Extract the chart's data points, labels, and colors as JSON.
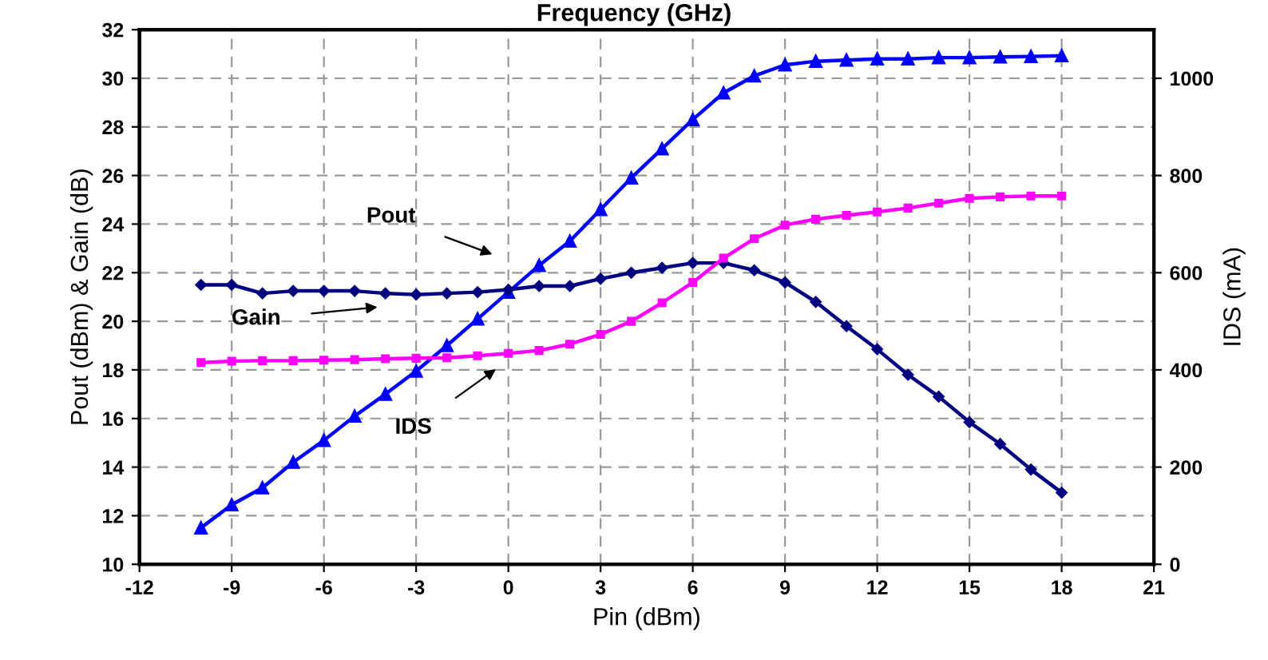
{
  "chart_data": {
    "type": "line",
    "title": "Frequency (GHz)",
    "xlabel": "Pin (dBm)",
    "ylabel": "Pout (dBm) & Gain (dB)",
    "y2label": "IDS (mA)",
    "x": [
      -10,
      -9,
      -8,
      -7,
      -6,
      -5,
      -4,
      -3,
      -2,
      -1,
      0,
      1,
      2,
      3,
      4,
      5,
      6,
      7,
      8,
      9,
      10,
      11,
      12,
      13,
      14,
      15,
      16,
      17,
      18
    ],
    "series": [
      {
        "color": "#0000ff",
        "marker": "triangle",
        "values": [
          11.5,
          12.45,
          13.15,
          14.2,
          15.1,
          16.1,
          17.0,
          17.95,
          19.0,
          20.1,
          21.2,
          22.3,
          23.3,
          24.6,
          25.9,
          27.1,
          28.3,
          29.4,
          30.1,
          30.55,
          30.7,
          30.75,
          30.8,
          30.8,
          30.85,
          30.85,
          30.88,
          30.9,
          30.93
        ]
      },
      {
        "color": "#000080",
        "marker": "diamond",
        "values": [
          21.5,
          21.5,
          21.15,
          21.25,
          21.25,
          21.25,
          21.15,
          21.1,
          21.15,
          21.2,
          21.3,
          21.45,
          21.45,
          21.75,
          22.0,
          22.2,
          22.4,
          22.4,
          22.1,
          21.6,
          20.8,
          19.8,
          18.85,
          17.8,
          16.9,
          15.85,
          14.95,
          13.9,
          12.95
        ]
      },
      {
        "color": "#ff00ff",
        "marker": "square",
        "axis": "y2",
        "values": [
          415,
          418,
          419,
          419,
          420,
          421,
          423,
          424,
          425,
          429,
          434,
          440,
          453,
          473,
          500,
          538,
          580,
          630,
          670,
          698,
          710,
          718,
          725,
          733,
          743,
          753,
          756,
          758,
          758
        ]
      }
    ],
    "xlim": [
      -12,
      21
    ],
    "xticks": [
      -12,
      -9,
      -6,
      -3,
      0,
      3,
      6,
      9,
      12,
      15,
      18,
      21
    ],
    "ylim": [
      10,
      32
    ],
    "yticks": [
      10,
      12,
      14,
      16,
      18,
      20,
      22,
      24,
      26,
      28,
      30,
      32
    ],
    "y2lim": [
      0,
      1100
    ],
    "y2ticks": [
      0,
      200,
      400,
      600,
      800,
      1000
    ],
    "grid": true,
    "line_style": "solid",
    "annotations": [
      "Pout",
      "Gain",
      "IDS"
    ]
  }
}
